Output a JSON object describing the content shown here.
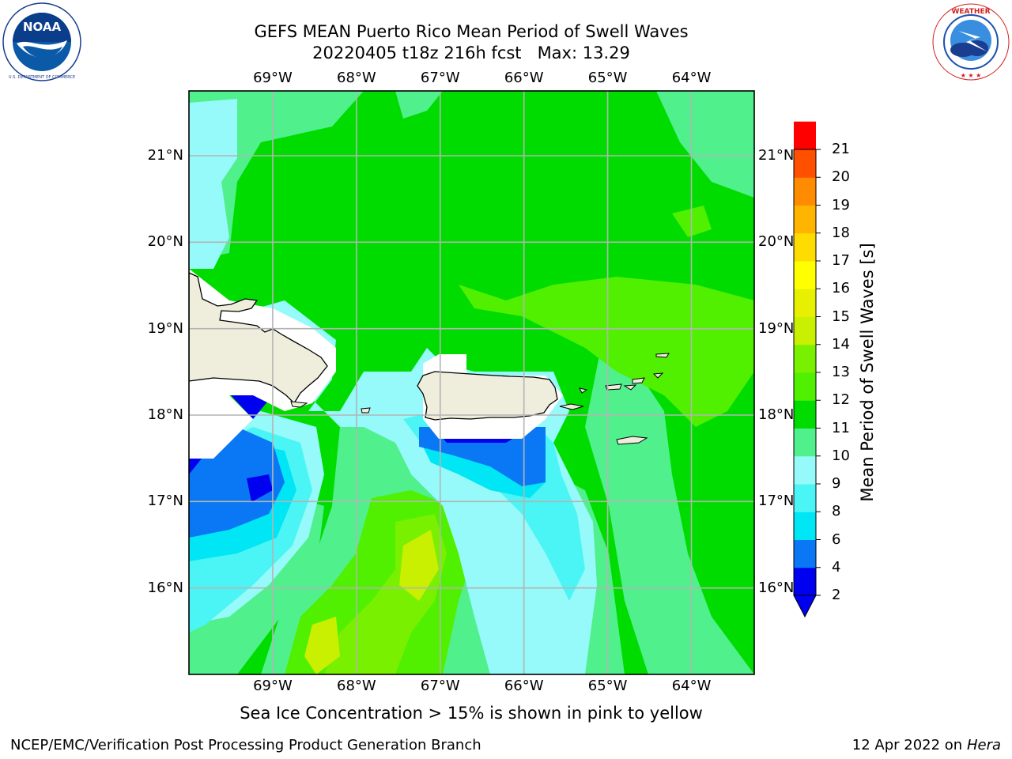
{
  "header": {
    "title_line1": "GEFS MEAN Puerto Rico Mean Period of Swell Waves",
    "title_line2": "20220405 t18z 216h fcst   Max: 13.29"
  },
  "logos": {
    "left": {
      "icon": "noaa-logo",
      "text": "NOAA",
      "ring_text": "NATIONAL OCEANIC AND ATMOSPHERIC ADMINISTRATION · U.S. DEPARTMENT OF COMMERCE"
    },
    "right": {
      "icon": "nws-logo",
      "ring_text": "NATIONAL WEATHER SERVICE"
    }
  },
  "map": {
    "longitude_labels": [
      "69°W",
      "68°W",
      "67°W",
      "66°W",
      "65°W",
      "64°W"
    ],
    "latitude_labels": [
      "21°N",
      "20°N",
      "19°N",
      "18°N",
      "17°N",
      "16°N"
    ],
    "extent": {
      "lon": [
        -70.0,
        -63.25
      ],
      "lat": [
        15.0,
        21.75
      ]
    },
    "grid": true,
    "land_color": "#efeedd",
    "land_regions": [
      "Hispaniola",
      "Puerto Rico",
      "Virgin Islands",
      "Mona Island"
    ]
  },
  "colorbar": {
    "label": "Mean Period of Swell Waves [s]",
    "tick_labels": [
      "2",
      "4",
      "6",
      "8",
      "9",
      "10",
      "11",
      "12",
      "13",
      "14",
      "15",
      "16",
      "17",
      "18",
      "19",
      "20",
      "21"
    ],
    "levels": [
      2,
      4,
      6,
      8,
      9,
      10,
      11,
      12,
      13,
      14,
      15,
      16,
      17,
      18,
      19,
      20,
      21
    ],
    "colors": [
      "#0000f0",
      "#0a78f5",
      "#00e6f5",
      "#4cf5f5",
      "#96fafa",
      "#50f08c",
      "#00dc00",
      "#50f000",
      "#78f000",
      "#c8f000",
      "#e6f000",
      "#ffff00",
      "#ffdc00",
      "#ffb400",
      "#ff8c00",
      "#ff5000",
      "#ff0000"
    ],
    "under_color": "#0000f0"
  },
  "footer": {
    "subtitle": "Sea Ice Concentration > 15% is shown in pink to yellow",
    "left": "NCEP/EMC/Verification Post Processing Product Generation Branch",
    "right_prefix": "12 Apr 2022 on ",
    "right_italic": "Hera"
  }
}
